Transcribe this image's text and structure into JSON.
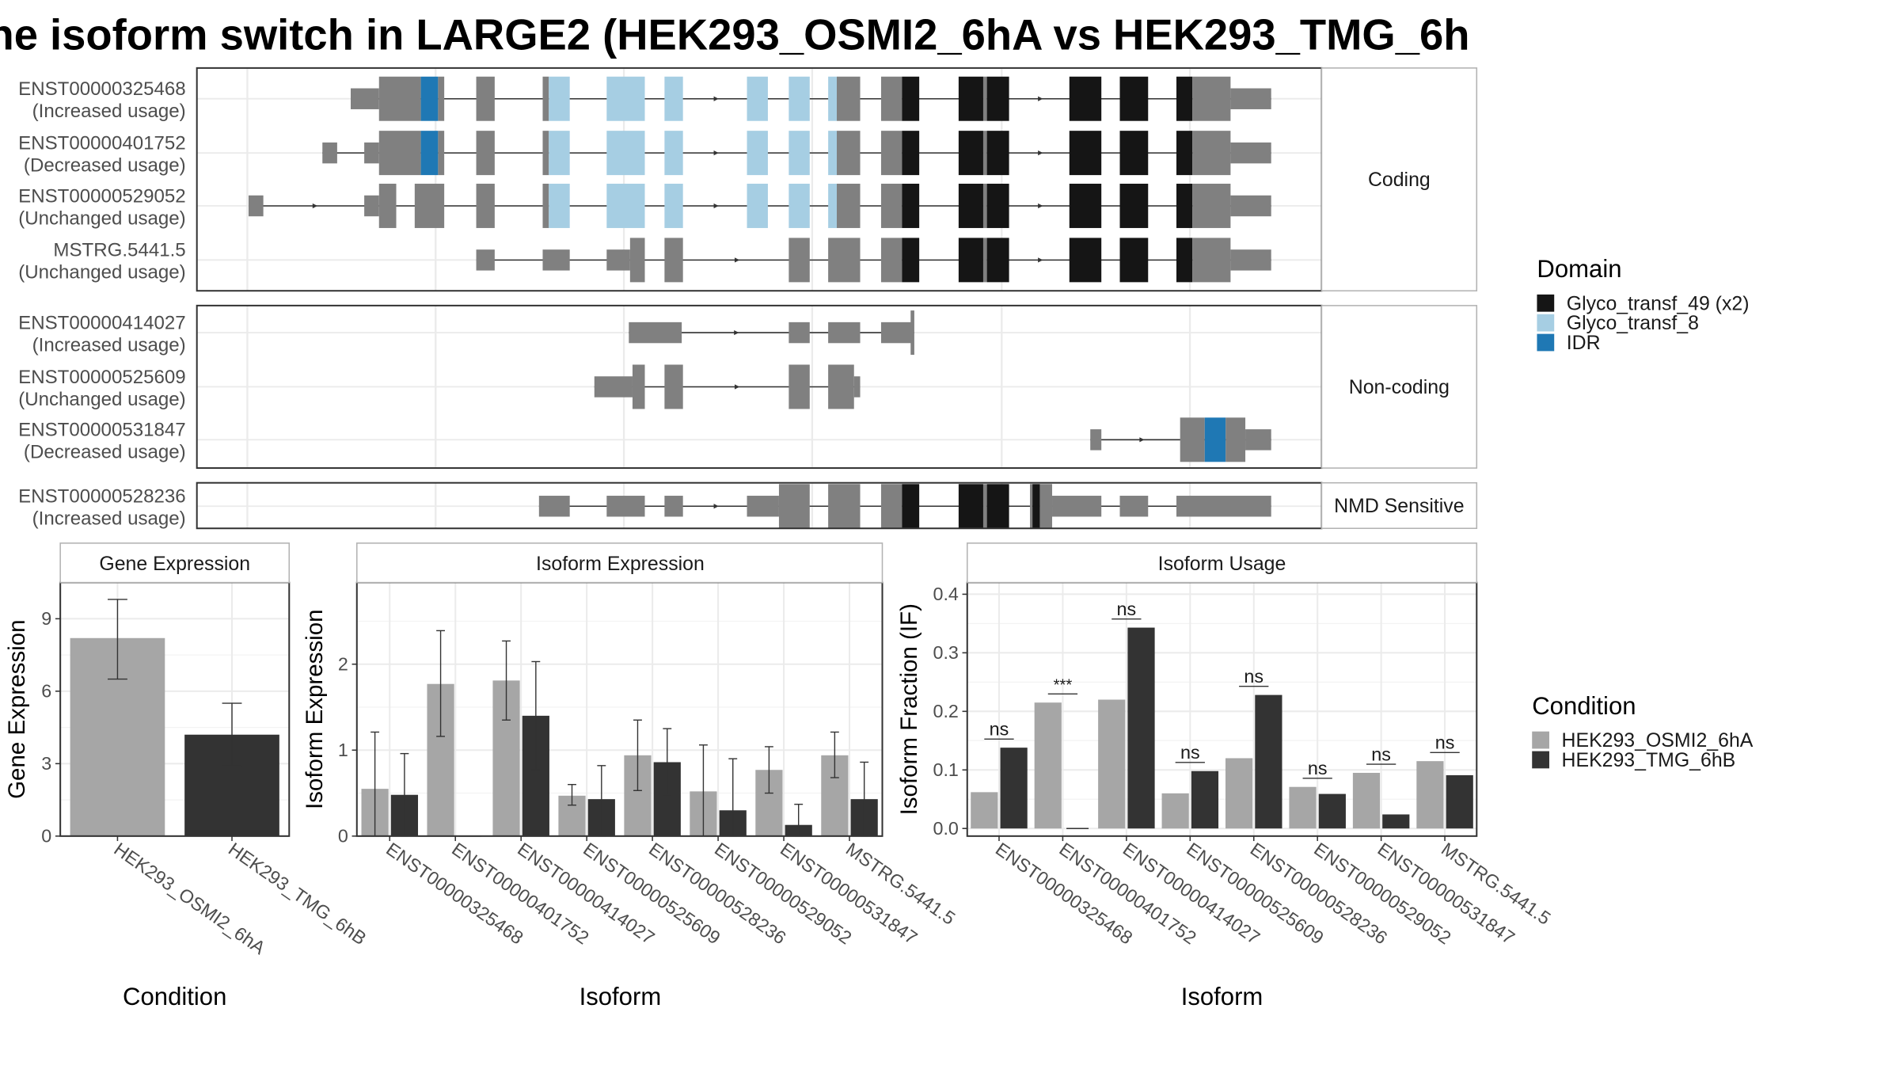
{
  "title": "ne isoform switch in LARGE2 (HEK293_OSMI2_6hA vs HEK293_TMG_6h",
  "colors": {
    "exon": "#808080",
    "glyco49": "#151515",
    "glyco8": "#a6cee3",
    "idr": "#1f78b4",
    "cond1": "#a6a6a6",
    "cond2": "#333333",
    "panel_border": "#333333",
    "grid": "#ebebeb"
  },
  "structure": {
    "panels": [
      {
        "label": "Coding",
        "transcripts": [
          {
            "id": "ENST00000325468",
            "usage": "(Increased usage)",
            "exons": [
              [
                285,
                308,
                "utr"
              ],
              [
                308,
                342,
                "cds"
              ],
              [
                342,
                356,
                "idr"
              ],
              [
                356,
                361,
                "cds"
              ],
              [
                387,
                402,
                "cds"
              ],
              [
                441,
                446,
                "cds"
              ],
              [
                446,
                463,
                "g8"
              ],
              [
                493,
                524,
                "g8"
              ],
              [
                540,
                555,
                "g8"
              ],
              [
                607,
                624,
                "g8"
              ],
              [
                641,
                658,
                "g8"
              ],
              [
                673,
                680,
                "g8"
              ],
              [
                680,
                699,
                "cds"
              ],
              [
                716,
                733,
                "cds"
              ],
              [
                733,
                747,
                "g49"
              ],
              [
                779,
                799,
                "g49"
              ],
              [
                799,
                802,
                "cds"
              ],
              [
                802,
                820,
                "g49"
              ],
              [
                869,
                895,
                "g49"
              ],
              [
                910,
                933,
                "g49"
              ],
              [
                956,
                969,
                "g49"
              ],
              [
                969,
                1000,
                "cds"
              ],
              [
                1000,
                1033,
                "utr"
              ]
            ]
          },
          {
            "id": "ENST00000401752",
            "usage": "(Decreased usage)",
            "exons": [
              [
                262,
                274,
                "utr"
              ],
              [
                296,
                308,
                "utr"
              ],
              [
                308,
                342,
                "cds"
              ],
              [
                342,
                356,
                "idr"
              ],
              [
                356,
                361,
                "cds"
              ],
              [
                387,
                402,
                "cds"
              ],
              [
                441,
                446,
                "cds"
              ],
              [
                446,
                463,
                "g8"
              ],
              [
                493,
                524,
                "g8"
              ],
              [
                540,
                555,
                "g8"
              ],
              [
                607,
                624,
                "g8"
              ],
              [
                641,
                658,
                "g8"
              ],
              [
                673,
                680,
                "g8"
              ],
              [
                680,
                699,
                "cds"
              ],
              [
                716,
                733,
                "cds"
              ],
              [
                733,
                747,
                "g49"
              ],
              [
                779,
                799,
                "g49"
              ],
              [
                799,
                802,
                "cds"
              ],
              [
                802,
                820,
                "g49"
              ],
              [
                869,
                895,
                "g49"
              ],
              [
                910,
                933,
                "g49"
              ],
              [
                956,
                969,
                "g49"
              ],
              [
                969,
                1000,
                "cds"
              ],
              [
                1000,
                1033,
                "utr"
              ]
            ]
          },
          {
            "id": "ENST00000529052",
            "usage": "(Unchanged usage)",
            "exons": [
              [
                202,
                214,
                "utr"
              ],
              [
                296,
                308,
                "utr"
              ],
              [
                308,
                322,
                "cds"
              ],
              [
                337,
                361,
                "cds"
              ],
              [
                387,
                402,
                "cds"
              ],
              [
                441,
                446,
                "cds"
              ],
              [
                446,
                463,
                "g8"
              ],
              [
                493,
                524,
                "g8"
              ],
              [
                540,
                555,
                "g8"
              ],
              [
                607,
                624,
                "g8"
              ],
              [
                641,
                658,
                "g8"
              ],
              [
                673,
                680,
                "g8"
              ],
              [
                680,
                699,
                "cds"
              ],
              [
                716,
                733,
                "cds"
              ],
              [
                733,
                747,
                "g49"
              ],
              [
                779,
                799,
                "g49"
              ],
              [
                799,
                802,
                "cds"
              ],
              [
                802,
                820,
                "g49"
              ],
              [
                869,
                895,
                "g49"
              ],
              [
                910,
                933,
                "g49"
              ],
              [
                956,
                969,
                "g49"
              ],
              [
                969,
                1000,
                "cds"
              ],
              [
                1000,
                1033,
                "utr"
              ]
            ]
          },
          {
            "id": "MSTRG.5441.5",
            "usage": "(Unchanged usage)",
            "exons": [
              [
                387,
                402,
                "utr"
              ],
              [
                441,
                463,
                "utr"
              ],
              [
                493,
                512,
                "utr"
              ],
              [
                512,
                524,
                "cds"
              ],
              [
                540,
                555,
                "cds"
              ],
              [
                641,
                658,
                "cds"
              ],
              [
                673,
                699,
                "cds"
              ],
              [
                716,
                733,
                "cds"
              ],
              [
                733,
                747,
                "g49"
              ],
              [
                779,
                799,
                "g49"
              ],
              [
                799,
                802,
                "cds"
              ],
              [
                802,
                820,
                "g49"
              ],
              [
                869,
                895,
                "g49"
              ],
              [
                910,
                933,
                "g49"
              ],
              [
                956,
                969,
                "g49"
              ],
              [
                969,
                1000,
                "cds"
              ],
              [
                1000,
                1033,
                "utr"
              ]
            ]
          }
        ]
      },
      {
        "label": "Non-coding",
        "transcripts": [
          {
            "id": "ENST00000414027",
            "usage": "(Increased usage)",
            "exons": [
              [
                511,
                554,
                "utr"
              ],
              [
                641,
                658,
                "utr"
              ],
              [
                673,
                699,
                "utr"
              ],
              [
                716,
                742,
                "utr"
              ],
              [
                740,
                743,
                "end"
              ]
            ]
          },
          {
            "id": "ENST00000525609",
            "usage": "(Unchanged usage)",
            "exons": [
              [
                483,
                514,
                "utr"
              ],
              [
                514,
                524,
                "cds"
              ],
              [
                540,
                555,
                "cds"
              ],
              [
                641,
                658,
                "cds"
              ],
              [
                673,
                694,
                "cds"
              ],
              [
                694,
                699,
                "utr"
              ]
            ]
          },
          {
            "id": "ENST00000531847",
            "usage": "(Decreased usage)",
            "exons": [
              [
                886,
                895,
                "utr"
              ],
              [
                959,
                979,
                "cds"
              ],
              [
                979,
                996,
                "idr"
              ],
              [
                996,
                1012,
                "cds"
              ],
              [
                1012,
                1033,
                "utr"
              ]
            ]
          }
        ]
      },
      {
        "label": "NMD Sensitive",
        "transcripts": [
          {
            "id": "ENST00000528236",
            "usage": "(Increased usage)",
            "exons": [
              [
                438,
                463,
                "utr"
              ],
              [
                493,
                524,
                "utr"
              ],
              [
                540,
                555,
                "utr"
              ],
              [
                607,
                633,
                "utr"
              ],
              [
                633,
                658,
                "cds"
              ],
              [
                673,
                699,
                "cds"
              ],
              [
                716,
                733,
                "cds"
              ],
              [
                733,
                747,
                "g49"
              ],
              [
                779,
                799,
                "g49"
              ],
              [
                799,
                802,
                "cds"
              ],
              [
                802,
                820,
                "g49"
              ],
              [
                837,
                839,
                "cds"
              ],
              [
                839,
                845,
                "g49"
              ],
              [
                845,
                855,
                "cds"
              ],
              [
                855,
                895,
                "utr"
              ],
              [
                910,
                933,
                "utr"
              ],
              [
                956,
                1033,
                "utr"
              ]
            ]
          }
        ]
      }
    ]
  },
  "legend_domain": {
    "title": "Domain",
    "items": [
      {
        "label": "Glyco_transf_49 (x2)",
        "color": "#151515"
      },
      {
        "label": "Glyco_transf_8",
        "color": "#a6cee3"
      },
      {
        "label": "IDR",
        "color": "#1f78b4"
      }
    ]
  },
  "legend_condition": {
    "title": "Condition",
    "items": [
      {
        "label": "HEK293_OSMI2_6hA",
        "color": "#a6a6a6"
      },
      {
        "label": "HEK293_TMG_6hB",
        "color": "#333333"
      }
    ]
  },
  "chart_data": [
    {
      "type": "bar",
      "title": "Gene Expression",
      "xlabel": "Condition",
      "ylabel": "Gene Expression",
      "categories": [
        "HEK293_OSMI2_6hA",
        "HEK293_TMG_6hB"
      ],
      "values": [
        8.2,
        4.2
      ],
      "error_low": [
        6.5,
        2.9
      ],
      "error_high": [
        9.8,
        5.5
      ],
      "ylim": [
        0,
        10.5
      ],
      "yticks": [
        0,
        3,
        6,
        9
      ],
      "ytick_labels": [
        "0",
        "3",
        "6",
        "9"
      ]
    },
    {
      "type": "bar",
      "title": "Isoform Expression",
      "xlabel": "Isoform",
      "ylabel": "Isoform Expression",
      "categories": [
        "ENST00000325468",
        "ENST00000401752",
        "ENST00000414027",
        "ENST00000525609",
        "ENST00000528236",
        "ENST00000529052",
        "ENST00000531847",
        "MSTRG.5441.5"
      ],
      "series": [
        {
          "name": "HEK293_OSMI2_6hA",
          "values": [
            0.55,
            1.77,
            1.81,
            0.47,
            0.94,
            0.52,
            0.77,
            0.94
          ],
          "error_low": [
            0.0,
            1.16,
            1.35,
            0.36,
            0.53,
            0.0,
            0.5,
            0.68
          ],
          "error_high": [
            1.21,
            2.39,
            2.27,
            0.6,
            1.35,
            1.06,
            1.04,
            1.21
          ]
        },
        {
          "name": "HEK293_TMG_6hB",
          "values": [
            0.48,
            0.0,
            1.4,
            0.43,
            0.86,
            0.3,
            0.13,
            0.43
          ],
          "error_low": [
            0.0,
            0.0,
            0.77,
            0.0,
            0.48,
            0.0,
            0.0,
            0.0
          ],
          "error_high": [
            0.96,
            0.0,
            2.03,
            0.82,
            1.25,
            0.9,
            0.37,
            0.86
          ]
        }
      ],
      "ylim": [
        0,
        2.95
      ],
      "yticks": [
        0,
        1,
        2
      ],
      "ytick_labels": [
        "0",
        "1",
        "2"
      ]
    },
    {
      "type": "bar",
      "title": "Isoform Usage",
      "xlabel": "Isoform",
      "ylabel": "Isoform Fraction (IF)",
      "categories": [
        "ENST00000325468",
        "ENST00000401752",
        "ENST00000414027",
        "ENST00000525609",
        "ENST00000528236",
        "ENST00000529052",
        "ENST00000531847",
        "MSTRG.5441.5"
      ],
      "series": [
        {
          "name": "HEK293_OSMI2_6hA",
          "values": [
            0.062,
            0.215,
            0.22,
            0.06,
            0.12,
            0.071,
            0.095,
            0.115
          ]
        },
        {
          "name": "HEK293_TMG_6hB",
          "values": [
            0.138,
            0.0,
            0.343,
            0.098,
            0.228,
            0.059,
            0.024,
            0.091
          ]
        }
      ],
      "significance": [
        "ns",
        "***",
        "ns",
        "ns",
        "ns",
        "ns",
        "ns",
        "ns"
      ],
      "ylim": [
        -0.013,
        0.42
      ],
      "yticks": [
        0,
        0.1,
        0.2,
        0.3,
        0.4
      ],
      "ytick_labels": [
        "0.0",
        "0.1",
        "0.2",
        "0.3",
        "0.4"
      ]
    }
  ]
}
